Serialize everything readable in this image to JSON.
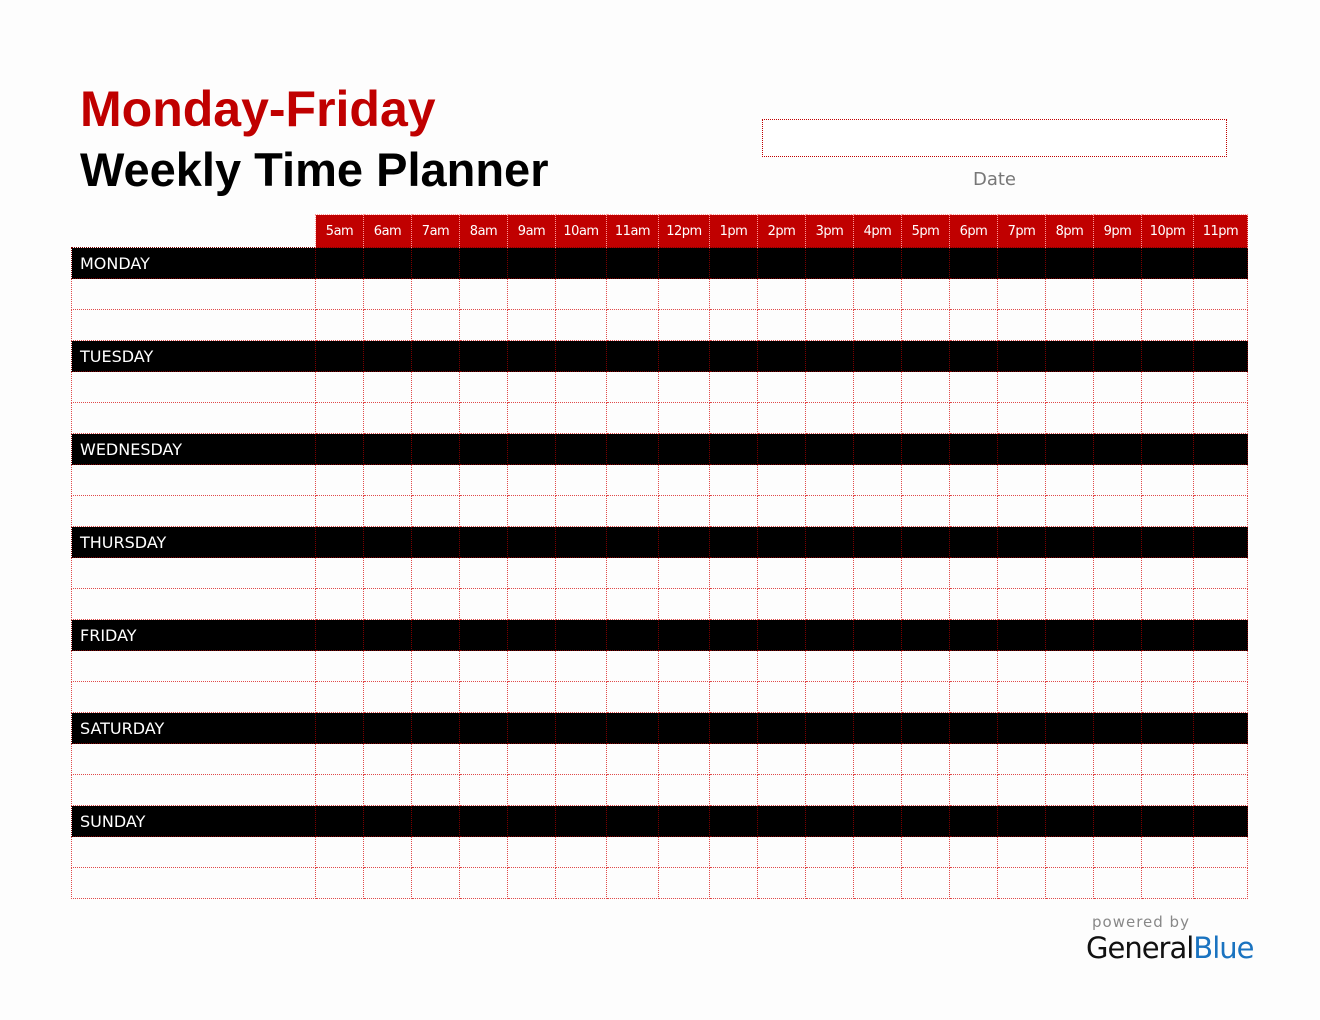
{
  "title": {
    "line1": "Monday-Friday",
    "line2": "Weekly Time Planner"
  },
  "date": {
    "value": "",
    "label": "Date"
  },
  "hours": [
    "5am",
    "6am",
    "7am",
    "8am",
    "9am",
    "10am",
    "11am",
    "12pm",
    "1pm",
    "2pm",
    "3pm",
    "4pm",
    "5pm",
    "6pm",
    "7pm",
    "8pm",
    "9pm",
    "10pm",
    "11pm"
  ],
  "days": [
    "MONDAY",
    "TUESDAY",
    "WEDNESDAY",
    "THURSDAY",
    "FRIDAY",
    "SATURDAY",
    "SUNDAY"
  ],
  "footer": {
    "powered_by": "powered by",
    "brand_general": "General",
    "brand_blue": "Blue"
  },
  "colors": {
    "accent": "#c00000",
    "day_row": "#000000",
    "brand_blue": "#1a73c0"
  }
}
